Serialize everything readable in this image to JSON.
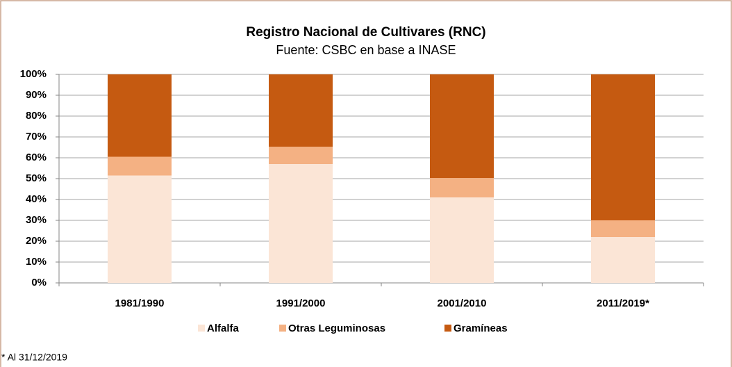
{
  "chart_data": {
    "type": "stacked_bar_100",
    "title": "Registro Nacional de Cultivares (RNC)",
    "subtitle": "Fuente: CSBC en base a INASE",
    "categories": [
      "1981/1990",
      "1991/2000",
      "2001/2010",
      "2011/2019*"
    ],
    "series": [
      {
        "name": "Alfalfa",
        "color": "#fbe5d6",
        "values": [
          51.5,
          57,
          41,
          22
        ]
      },
      {
        "name": "Otras Leguminosas",
        "color": "#f4b183",
        "values": [
          9,
          8.3,
          9.3,
          8
        ]
      },
      {
        "name": "Gramíneas",
        "color": "#c55a11",
        "values": [
          39.5,
          34.7,
          49.7,
          70
        ]
      }
    ],
    "ylim": [
      0,
      100
    ],
    "yticks": [
      {
        "value": 0,
        "label": "0%"
      },
      {
        "value": 10,
        "label": "10%"
      },
      {
        "value": 20,
        "label": "20%"
      },
      {
        "value": 30,
        "label": "30%"
      },
      {
        "value": 40,
        "label": "40%"
      },
      {
        "value": 50,
        "label": "50%"
      },
      {
        "value": 60,
        "label": "60%"
      },
      {
        "value": 70,
        "label": "70%"
      },
      {
        "value": 80,
        "label": "80%"
      },
      {
        "value": 90,
        "label": "90%"
      },
      {
        "value": 100,
        "label": "100%"
      }
    ],
    "grid": true,
    "legend": "bottom",
    "footnote": "* Al 31/12/2019"
  }
}
